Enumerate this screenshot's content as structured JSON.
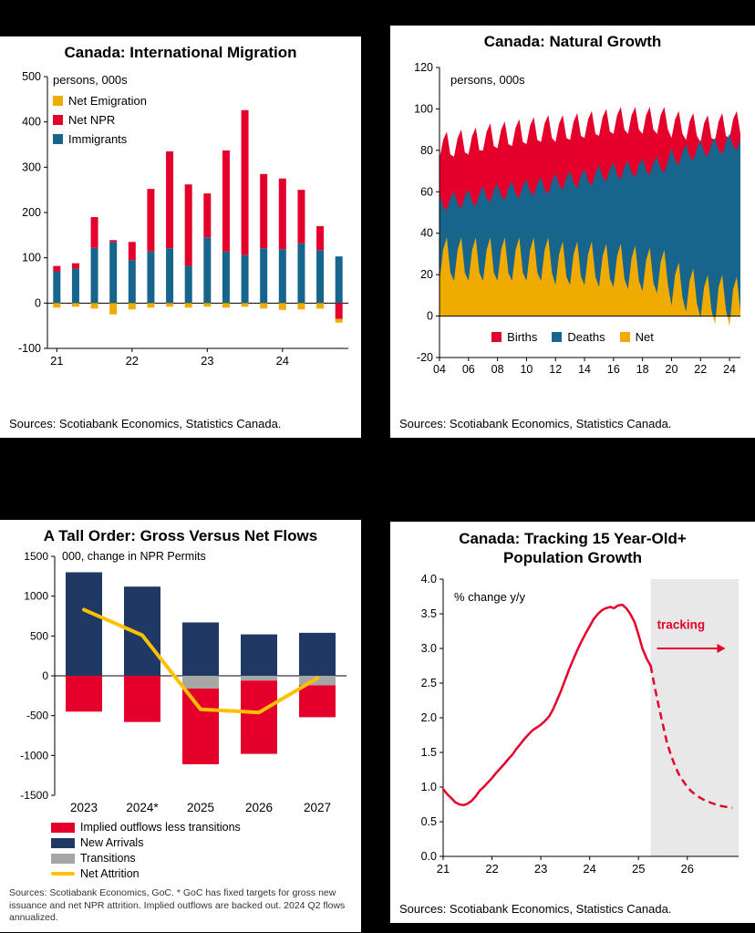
{
  "page": {
    "background": "#000000",
    "panel_background": "#ffffff"
  },
  "chart_data": [
    {
      "id": "migration",
      "type": "bar",
      "stacked": true,
      "title": "Canada: International Migration",
      "unit_label": "persons, 000s",
      "source": "Sources: Scotiabank Economics, Statistics Canada.",
      "categories": [
        "21Q1",
        "21Q2",
        "21Q3",
        "21Q4",
        "22Q1",
        "22Q2",
        "22Q3",
        "22Q4",
        "23Q1",
        "23Q2",
        "23Q3",
        "23Q4",
        "24Q1",
        "24Q2",
        "24Q3",
        "24Q4"
      ],
      "x_tick_indices": [
        0,
        4,
        8,
        12
      ],
      "x_tick_labels": [
        "21",
        "22",
        "23",
        "24"
      ],
      "ylim": [
        -100,
        500
      ],
      "ytick_step": 100,
      "grid": false,
      "legend_position": "top-left-inside",
      "series": [
        {
          "name": "Net Emigration",
          "color": "#f0ab00",
          "values": [
            -10,
            -8,
            -12,
            -25,
            -14,
            -10,
            -8,
            -10,
            -8,
            -10,
            -8,
            -12,
            -15,
            -14,
            -12,
            -8
          ]
        },
        {
          "name": "Net NPR",
          "color": "#e4002b",
          "values": [
            12,
            12,
            68,
            4,
            40,
            138,
            214,
            180,
            97,
            223,
            320,
            164,
            156,
            118,
            53,
            -35
          ]
        },
        {
          "name": "Immigrants",
          "color": "#17648d",
          "values": [
            70,
            76,
            122,
            135,
            95,
            114,
            121,
            82,
            145,
            114,
            106,
            121,
            119,
            132,
            117,
            103
          ]
        }
      ],
      "stack_order": [
        "Immigrants",
        "Net NPR",
        "Net Emigration"
      ]
    },
    {
      "id": "natural-growth",
      "type": "area",
      "title": "Canada: Natural Growth",
      "unit_label": "persons, 000s",
      "source": "Sources: Scotiabank Economics, Statistics Canada.",
      "x_start": "2004Q1",
      "x_end": "2024Q4",
      "x_tick_indices": [
        0,
        8,
        16,
        24,
        32,
        40,
        48,
        56,
        64,
        72,
        80
      ],
      "x_tick_labels": [
        "04",
        "06",
        "08",
        "10",
        "12",
        "14",
        "16",
        "18",
        "20",
        "22",
        "24"
      ],
      "ylim": [
        -20,
        120
      ],
      "ytick_step": 20,
      "grid": false,
      "legend_position": "bottom-inside",
      "series": [
        {
          "name": "Births",
          "color": "#e4002b",
          "values": [
            76,
            85,
            89,
            78,
            77,
            86,
            90,
            79,
            78,
            87,
            91,
            80,
            80,
            89,
            93,
            82,
            81,
            90,
            94,
            83,
            82,
            91,
            95,
            84,
            83,
            92,
            96,
            85,
            84,
            93,
            97,
            86,
            84,
            93,
            97,
            86,
            85,
            94,
            98,
            87,
            86,
            95,
            99,
            88,
            87,
            96,
            100,
            89,
            88,
            97,
            101,
            90,
            88,
            97,
            101,
            90,
            88,
            97,
            101,
            90,
            88,
            97,
            101,
            90,
            86,
            95,
            99,
            88,
            85,
            94,
            98,
            87,
            84,
            93,
            97,
            86,
            85,
            94,
            98,
            87,
            86,
            95,
            99,
            88
          ]
        },
        {
          "name": "Deaths",
          "color": "#17648d",
          "values": [
            59,
            53,
            51,
            57,
            60,
            54,
            52,
            58,
            61,
            55,
            53,
            59,
            63,
            57,
            55,
            61,
            64,
            58,
            56,
            62,
            65,
            59,
            57,
            63,
            66,
            60,
            58,
            64,
            67,
            61,
            59,
            65,
            69,
            63,
            61,
            67,
            70,
            64,
            62,
            68,
            71,
            65,
            63,
            69,
            73,
            67,
            65,
            71,
            74,
            68,
            66,
            72,
            75,
            69,
            67,
            73,
            76,
            70,
            68,
            74,
            77,
            71,
            69,
            75,
            81,
            75,
            73,
            79,
            83,
            77,
            75,
            81,
            85,
            79,
            77,
            83,
            86,
            80,
            78,
            84,
            88,
            82,
            80,
            86
          ]
        },
        {
          "name": "Net",
          "color": "#f0ab00",
          "values": [
            17,
            32,
            38,
            21,
            17,
            32,
            38,
            21,
            17,
            32,
            38,
            21,
            17,
            32,
            38,
            21,
            17,
            32,
            38,
            21,
            17,
            32,
            38,
            21,
            17,
            32,
            38,
            21,
            17,
            32,
            38,
            21,
            15,
            30,
            36,
            19,
            15,
            30,
            36,
            19,
            15,
            30,
            36,
            19,
            14,
            29,
            35,
            18,
            14,
            29,
            35,
            18,
            13,
            28,
            34,
            17,
            12,
            27,
            33,
            16,
            11,
            26,
            32,
            15,
            5,
            20,
            26,
            9,
            2,
            17,
            23,
            6,
            -1,
            14,
            20,
            3,
            -4,
            14,
            20,
            3,
            -5,
            13,
            19,
            2
          ]
        }
      ]
    },
    {
      "id": "flows",
      "type": "bar",
      "stacked": true,
      "title": "A Tall Order: Gross Versus Net Flows",
      "unit_label": "000, change in NPR Permits",
      "source": "Sources: Scotiabank Economics, GoC. * GoC has fixed targets for gross new issuance and net NPR attrition. Implied outflows are backed out. 2024 Q2 flows annualized.",
      "categories": [
        "2023",
        "2024*",
        "2025",
        "2026",
        "2027"
      ],
      "ylim": [
        -1500,
        1500
      ],
      "ytick_step": 500,
      "grid": false,
      "legend_position": "bottom-below",
      "series": [
        {
          "name": "Implied outflows less transitions",
          "color": "#e4002b",
          "role": "bar",
          "values": [
            -450,
            -580,
            -950,
            -920,
            -400
          ]
        },
        {
          "name": "New Arrivals",
          "color": "#1f3864",
          "role": "bar",
          "values": [
            1300,
            1120,
            670,
            520,
            540
          ]
        },
        {
          "name": "Transitions",
          "color": "#a6a6a6",
          "role": "bar",
          "values": [
            0,
            0,
            -160,
            -60,
            -120
          ]
        },
        {
          "name": "Net Attrition",
          "color": "#ffc000",
          "role": "line",
          "values": [
            830,
            510,
            -420,
            -460,
            -30
          ]
        }
      ]
    },
    {
      "id": "tracking",
      "type": "line",
      "title": "Canada: Tracking 15 Year-Old+ Population Growth",
      "unit_label": "% change y/y",
      "source": "Sources: Scotiabank Economics, Statistics Canada.",
      "xlim": [
        21,
        27.05
      ],
      "ylim": [
        0,
        4.0
      ],
      "ytick_step": 0.5,
      "x_ticks": [
        21,
        22,
        23,
        24,
        25,
        26
      ],
      "grid": false,
      "shade_start": 25.25,
      "shade_color": "#e8e8e8",
      "line_color": "#e4002b",
      "annotation": {
        "text": "tracking",
        "x": 25.38,
        "y": 3.28,
        "arrow_y": 3.0,
        "arrow_x2": 26.78
      },
      "solid": [
        [
          21.0,
          0.97
        ],
        [
          21.08,
          0.9
        ],
        [
          21.17,
          0.84
        ],
        [
          21.25,
          0.78
        ],
        [
          21.33,
          0.75
        ],
        [
          21.42,
          0.74
        ],
        [
          21.5,
          0.76
        ],
        [
          21.58,
          0.8
        ],
        [
          21.67,
          0.87
        ],
        [
          21.75,
          0.95
        ],
        [
          21.83,
          1.0
        ],
        [
          21.92,
          1.07
        ],
        [
          22.0,
          1.13
        ],
        [
          22.08,
          1.2
        ],
        [
          22.17,
          1.27
        ],
        [
          22.25,
          1.33
        ],
        [
          22.33,
          1.4
        ],
        [
          22.42,
          1.47
        ],
        [
          22.5,
          1.55
        ],
        [
          22.58,
          1.62
        ],
        [
          22.67,
          1.7
        ],
        [
          22.75,
          1.76
        ],
        [
          22.83,
          1.82
        ],
        [
          22.92,
          1.86
        ],
        [
          23.0,
          1.9
        ],
        [
          23.08,
          1.95
        ],
        [
          23.17,
          2.02
        ],
        [
          23.25,
          2.12
        ],
        [
          23.33,
          2.25
        ],
        [
          23.42,
          2.4
        ],
        [
          23.5,
          2.55
        ],
        [
          23.58,
          2.7
        ],
        [
          23.67,
          2.85
        ],
        [
          23.75,
          2.98
        ],
        [
          23.83,
          3.1
        ],
        [
          23.92,
          3.22
        ],
        [
          24.0,
          3.32
        ],
        [
          24.08,
          3.42
        ],
        [
          24.17,
          3.5
        ],
        [
          24.25,
          3.55
        ],
        [
          24.33,
          3.58
        ],
        [
          24.42,
          3.6
        ],
        [
          24.5,
          3.58
        ],
        [
          24.58,
          3.62
        ],
        [
          24.67,
          3.63
        ],
        [
          24.75,
          3.58
        ],
        [
          24.83,
          3.5
        ],
        [
          24.92,
          3.38
        ],
        [
          25.0,
          3.2
        ],
        [
          25.08,
          3.0
        ],
        [
          25.17,
          2.85
        ],
        [
          25.25,
          2.75
        ]
      ],
      "dashed": [
        [
          25.25,
          2.75
        ],
        [
          25.33,
          2.45
        ],
        [
          25.42,
          2.15
        ],
        [
          25.5,
          1.9
        ],
        [
          25.58,
          1.65
        ],
        [
          25.67,
          1.45
        ],
        [
          25.75,
          1.3
        ],
        [
          25.83,
          1.18
        ],
        [
          25.92,
          1.08
        ],
        [
          26.0,
          1.0
        ],
        [
          26.08,
          0.94
        ],
        [
          26.17,
          0.89
        ],
        [
          26.25,
          0.85
        ],
        [
          26.33,
          0.82
        ],
        [
          26.42,
          0.79
        ],
        [
          26.5,
          0.77
        ],
        [
          26.58,
          0.75
        ],
        [
          26.67,
          0.73
        ],
        [
          26.75,
          0.72
        ],
        [
          26.83,
          0.71
        ],
        [
          26.92,
          0.7
        ]
      ]
    }
  ]
}
